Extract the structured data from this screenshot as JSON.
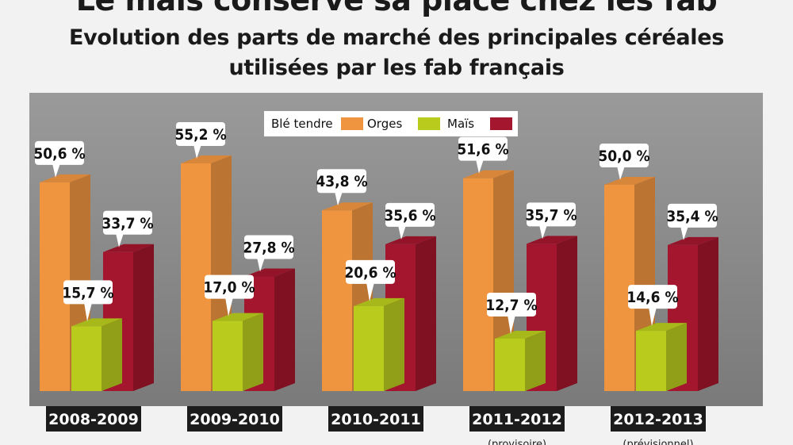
{
  "header": {
    "title": "Le maïs conserve sa place chez les fab",
    "subtitle_line1": "Evolution des parts de marché des principales céréales",
    "subtitle_line2": "utilisées par les fab français"
  },
  "colors": {
    "panel_bg": "#8f8f8f",
    "orange": "#f0953f",
    "green": "#b9cc1d",
    "maroon": "#a3162d",
    "category_box": "#1c1c1c"
  },
  "chart_data": {
    "type": "bar",
    "categories": [
      "2008-2009",
      "2009-2010",
      "2010-2011",
      "2011-2012",
      "2012-2013"
    ],
    "category_notes": [
      "",
      "",
      "",
      "(provisoire)",
      "(prévisionnel)"
    ],
    "legend_labels": [
      "Blé tendre",
      "Orges",
      "Maïs"
    ],
    "legend_colors": [
      "#f0953f",
      "#b9cc1d",
      "#a3162d"
    ],
    "series": [
      {
        "name": "Blé tendre",
        "color": "#f0953f",
        "values": [
          50.6,
          55.2,
          43.8,
          51.6,
          50.0
        ],
        "labels": [
          "50,6 %",
          "55,2 %",
          "43,8 %",
          "51,6 %",
          "50,0 %"
        ]
      },
      {
        "name": "Orges",
        "color": "#b9cc1d",
        "values": [
          15.7,
          17.0,
          20.6,
          12.7,
          14.6
        ],
        "labels": [
          "15,7 %",
          "17,0 %",
          "20,6 %",
          "12,7 %",
          "14,6 %"
        ]
      },
      {
        "name": "Maïs",
        "color": "#a3162d",
        "values": [
          33.7,
          27.8,
          35.6,
          35.7,
          35.4
        ],
        "labels": [
          "33,7 %",
          "27,8 %",
          "35,6 %",
          "35,7 %",
          "35,4 %"
        ]
      }
    ],
    "ylim": [
      0,
      60
    ],
    "grid": false,
    "legend_position": "top-center"
  }
}
